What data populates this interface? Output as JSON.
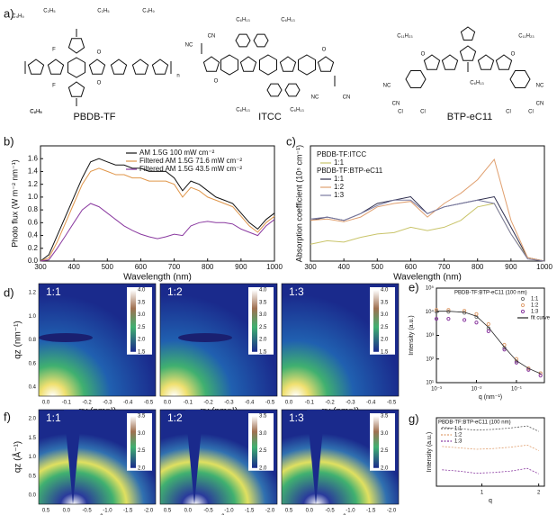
{
  "panel_labels": [
    "a)",
    "b)",
    "c)",
    "d)",
    "e)",
    "f)",
    "g)"
  ],
  "molecules": [
    {
      "name": "PBDB-TF",
      "groups": [
        "C₄H₉",
        "C₂H₅",
        "C₂H₅",
        "C₄H₉",
        "F",
        "F",
        "O",
        "O",
        "n",
        "C₂H₅",
        "C₄H₉"
      ]
    },
    {
      "name": "ITCC",
      "groups": [
        "C₆H₁₃",
        "C₆H₁₃",
        "NC",
        "CN",
        "O",
        "O",
        "NC",
        "CN",
        "C₆H₁₃",
        "C₆H₁₃"
      ]
    },
    {
      "name": "BTP-eC11",
      "groups": [
        "C₁₁H₂₃",
        "C₁₁H₂₃",
        "NC",
        "CN",
        "O",
        "O",
        "NC",
        "CN",
        "Cl",
        "Cl",
        "Cl",
        "Cl",
        "C₆H₁₃"
      ]
    }
  ],
  "chart_data": [
    {
      "type": "line",
      "xlabel": "Wavelength (nm)",
      "ylabel": "Photo flux (W m⁻² nm⁻¹)",
      "x": [
        300,
        325,
        350,
        375,
        400,
        425,
        450,
        475,
        500,
        525,
        550,
        575,
        600,
        625,
        650,
        675,
        700,
        725,
        750,
        775,
        800,
        825,
        850,
        875,
        900,
        925,
        950,
        975,
        1000
      ],
      "xlim": [
        300,
        1000
      ],
      "xticks": [
        300,
        400,
        500,
        600,
        700,
        800,
        900,
        1000
      ],
      "ylim": [
        0,
        1.8
      ],
      "yticks": [
        {
          "value": 0,
          "label": "0.0"
        },
        0.2,
        0.4,
        0.6,
        0.8,
        {
          "value": 1,
          "label": "1.0"
        },
        1.2,
        1.4,
        1.6
      ],
      "series": [
        {
          "name": "AM 1.5G 100 mW cm⁻²",
          "color": "#111111",
          "values": [
            0,
            0.1,
            0.4,
            0.7,
            1.0,
            1.3,
            1.55,
            1.6,
            1.55,
            1.5,
            1.5,
            1.45,
            1.45,
            1.4,
            1.4,
            1.4,
            1.3,
            1.1,
            1.25,
            1.2,
            1.1,
            1.0,
            0.95,
            0.9,
            0.75,
            0.6,
            0.5,
            0.65,
            0.75
          ]
        },
        {
          "name": "Filtered AM 1.5G 71.6 mW cm⁻²",
          "color": "#e0964a",
          "values": [
            0,
            0.05,
            0.3,
            0.6,
            0.9,
            1.2,
            1.4,
            1.45,
            1.4,
            1.35,
            1.35,
            1.3,
            1.3,
            1.25,
            1.25,
            1.25,
            1.2,
            1.0,
            1.15,
            1.1,
            1.0,
            0.95,
            0.9,
            0.85,
            0.7,
            0.55,
            0.45,
            0.6,
            0.7
          ]
        },
        {
          "name": "Filtered AM 1.5G 43.5 mW cm⁻²",
          "color": "#8a3aa0",
          "values": [
            0,
            0.02,
            0.2,
            0.4,
            0.6,
            0.8,
            0.9,
            0.85,
            0.75,
            0.65,
            0.55,
            0.48,
            0.42,
            0.38,
            0.35,
            0.38,
            0.42,
            0.4,
            0.55,
            0.6,
            0.62,
            0.6,
            0.6,
            0.58,
            0.5,
            0.45,
            0.4,
            0.55,
            0.65
          ]
        }
      ]
    },
    {
      "type": "line",
      "xlabel": "Wavelength (nm)",
      "ylabel": "Absorption coefficient (10⁵ cm⁻¹)",
      "x": [
        300,
        350,
        400,
        450,
        500,
        550,
        600,
        650,
        700,
        750,
        800,
        850,
        900,
        950,
        1000
      ],
      "xlim": [
        300,
        1000
      ],
      "xticks": [
        300,
        400,
        500,
        600,
        700,
        800,
        900,
        1000
      ],
      "ylim": [
        0,
        1.7
      ],
      "series": [
        {
          "group": "PBDB-TF:ITCC",
          "name": "1:1",
          "color": "#c9c46a",
          "values": [
            0.25,
            0.3,
            0.28,
            0.35,
            0.4,
            0.42,
            0.5,
            0.45,
            0.5,
            0.6,
            0.8,
            0.85,
            0.4,
            0.05,
            0
          ]
        },
        {
          "group": "PBDB-TF:BTP-eC11",
          "name": "1:1",
          "color": "#2e2e4e",
          "values": [
            0.6,
            0.65,
            0.6,
            0.7,
            0.85,
            0.9,
            0.95,
            0.7,
            0.8,
            0.85,
            0.9,
            0.95,
            0.5,
            0.05,
            0
          ]
        },
        {
          "group": "PBDB-TF:BTP-eC11",
          "name": "1:2",
          "color": "#e0a070",
          "values": [
            0.6,
            0.62,
            0.58,
            0.65,
            0.8,
            0.85,
            0.88,
            0.65,
            0.85,
            1.0,
            1.2,
            1.5,
            0.6,
            0.05,
            0
          ]
        },
        {
          "group": "PBDB-TF:BTP-eC11",
          "name": "1:3",
          "color": "#7a7aa0",
          "values": [
            0.62,
            0.65,
            0.6,
            0.7,
            0.82,
            0.9,
            0.9,
            0.7,
            0.8,
            0.85,
            0.9,
            0.85,
            0.4,
            0.03,
            0
          ]
        }
      ]
    },
    {
      "type": "scatter",
      "title": "PBDB-TF:BTP-eC11 (100 nm)",
      "xlabel": "q (nm⁻¹)",
      "ylabel": "Intensity (a.u.)",
      "xlog": true,
      "ylog": true,
      "x": [
        0.001,
        0.002,
        0.005,
        0.01,
        0.02,
        0.05,
        0.1,
        0.2,
        0.4
      ],
      "xlim": [
        0.001,
        0.5
      ],
      "xticks": [
        {
          "value": 0.001,
          "label": "10⁻³"
        },
        {
          "value": 0.01,
          "label": "10⁻²"
        },
        {
          "value": 0.1,
          "label": "10⁻¹"
        }
      ],
      "ylim": [
        10,
        100000
      ],
      "yticks": [
        {
          "value": 10,
          "label": "10¹"
        },
        {
          "value": 100,
          "label": "10²"
        },
        {
          "value": 1000,
          "label": "10³"
        },
        {
          "value": 10000,
          "label": "10⁴"
        },
        {
          "value": 100000,
          "label": "10⁵"
        }
      ],
      "series": [
        {
          "name": "1:1",
          "color": "#777777",
          "values": [
            10000,
            10000,
            9000,
            6000,
            2000,
            300,
            80,
            40,
            25
          ]
        },
        {
          "name": "1:2",
          "color": "#e0a070",
          "values": [
            12000,
            12000,
            11000,
            8000,
            3000,
            400,
            100,
            40,
            25
          ]
        },
        {
          "name": "1:3",
          "color": "#8a3aa0",
          "values": [
            5000,
            5000,
            4500,
            3500,
            1500,
            250,
            70,
            35,
            20
          ]
        },
        {
          "name": "fit curve",
          "color": "#222222",
          "style": "line",
          "values": [
            10500,
            10500,
            9500,
            6500,
            2200,
            320,
            85,
            40,
            24
          ]
        }
      ]
    },
    {
      "type": "line",
      "title": "PBDB-TF:BTP-eC11 (100 nm)",
      "xlabel": "q",
      "ylabel": "Intensity (a.u.)",
      "x": [
        0.3,
        0.6,
        0.9,
        1.2,
        1.5,
        1.8,
        2.0
      ],
      "xlim": [
        0.2,
        2.1
      ],
      "xticks": [
        1,
        2
      ],
      "ylim": [
        0,
        10
      ],
      "series": [
        {
          "name": "1:1",
          "color": "#555555",
          "dash": true,
          "values": [
            8.6,
            8.4,
            8.2,
            8.3,
            8.5,
            8.8,
            8.0
          ]
        },
        {
          "name": "1:2",
          "color": "#e0a070",
          "dash": true,
          "values": [
            5.8,
            5.6,
            5.4,
            5.5,
            5.7,
            6.0,
            5.2
          ]
        },
        {
          "name": "1:3",
          "color": "#8a3aa0",
          "dash": true,
          "values": [
            2.4,
            2.2,
            1.9,
            2.0,
            2.2,
            2.6,
            1.8
          ]
        }
      ]
    }
  ],
  "maps": [
    {
      "ratios": [
        "1:1",
        "1:2",
        "1:3"
      ],
      "xlabel": "qy (nm⁻¹)",
      "ylabel": "qz (nm⁻¹)",
      "xticks": [
        "0.0",
        "-0.1",
        "-0.2",
        "-0.3",
        "-0.4",
        "-0.5"
      ],
      "yticks": [
        "1.2",
        "1.0",
        "0.8",
        "0.6",
        "0.4"
      ],
      "colorbar": [
        "4.0",
        "3.5",
        "3.0",
        "2.5",
        "2.0",
        "1.5"
      ]
    },
    {
      "ratios": [
        "1:1",
        "1:2",
        "1:3"
      ],
      "xlabel": "qxy (Å⁻¹)",
      "ylabel": "qz (Å⁻¹)",
      "xticks": [
        "0.5",
        "0.0",
        "-0.5",
        "-1.0",
        "-1.5",
        "-2.0"
      ],
      "yticks": [
        "2.0",
        "1.5",
        "1.0",
        "0.5",
        "0.0"
      ],
      "colorbar": [
        "3.5",
        "3.0",
        "2.5",
        "2.0"
      ]
    }
  ]
}
